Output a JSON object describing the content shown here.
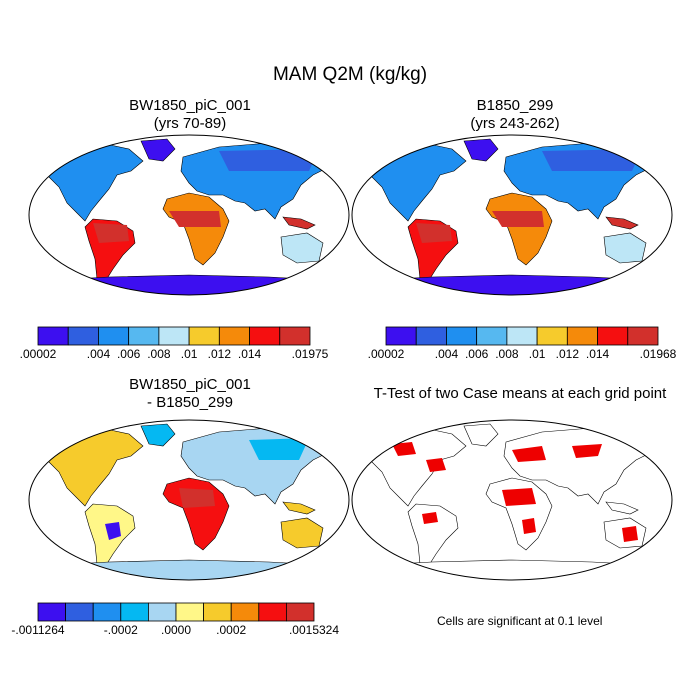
{
  "title": "MAM Q2M (kg/kg)",
  "panels": [
    {
      "id": "p1",
      "title": "BW1850_piC_001\n(yrs 70-89)",
      "kind": "absolute"
    },
    {
      "id": "p2",
      "title": "B1850_299\n(yrs 243-262)",
      "kind": "absolute"
    },
    {
      "id": "p3",
      "title": "BW1850_piC_001\n- B1850_299",
      "kind": "difference"
    },
    {
      "id": "p4",
      "title": "T-Test of two Case means at each grid point",
      "kind": "ttest"
    }
  ],
  "colorbars": [
    {
      "id": "cb1",
      "colors": [
        "#3d0ff0",
        "#2f5fe0",
        "#1f8ff0",
        "#56b8f0",
        "#bde6f6",
        "#f6cb2c",
        "#f58a0a",
        "#f50f10",
        "#d2302c"
      ],
      "labels": [
        ".00002",
        ".004",
        ".006",
        ".008",
        ".01",
        ".012",
        ".014",
        ".01975"
      ]
    },
    {
      "id": "cb2",
      "colors": [
        "#3d0ff0",
        "#2f5fe0",
        "#1f8ff0",
        "#56b8f0",
        "#bde6f6",
        "#f6cb2c",
        "#f58a0a",
        "#f50f10",
        "#d2302c"
      ],
      "labels": [
        ".00002",
        ".004",
        ".006",
        ".008",
        ".01",
        ".012",
        ".014",
        ".01968"
      ]
    },
    {
      "id": "cb3",
      "colors": [
        "#3d0ff0",
        "#2f5fe0",
        "#1f8ff0",
        "#05b8f2",
        "#a8d6f2",
        "#fff788",
        "#f6cb2c",
        "#f58a0a",
        "#f50f10",
        "#d2302c"
      ],
      "labels": [
        "-.0011264",
        "-.0002",
        ".0000",
        ".0002",
        ".0015324"
      ]
    }
  ],
  "note": "Cells are significant at 0.1 level",
  "colors": {
    "sig": "#ee0000",
    "outline": "#000000"
  }
}
